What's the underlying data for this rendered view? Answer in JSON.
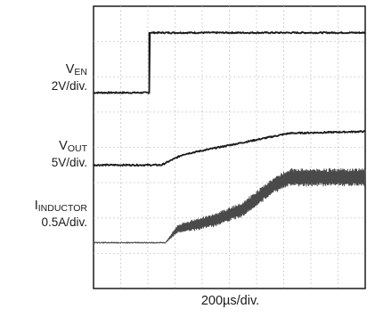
{
  "labels": {
    "ven_main": "V",
    "ven_sub": "EN",
    "ven_scale": "2V/div.",
    "vout_main": "V",
    "vout_sub": "OUT",
    "vout_scale": "5V/div.",
    "iind_main": "I",
    "iind_sub": "INDUCTOR",
    "iind_scale": "0.5A/div."
  },
  "timebase": "200µs/div.",
  "chart_data": {
    "type": "line",
    "title": "",
    "xlabel": "200µs/div.",
    "ylabel": "",
    "grid": true,
    "x_divisions": 10,
    "y_divisions": 8,
    "xlim": [
      0,
      10
    ],
    "ylim": [
      0,
      8
    ],
    "series": [
      {
        "name": "VEN",
        "scale": "2V/div.",
        "x": [
          0,
          2.05,
          2.05,
          10
        ],
        "y": [
          5.55,
          5.55,
          7.25,
          7.25
        ]
      },
      {
        "name": "VOUT",
        "scale": "5V/div.",
        "x": [
          0,
          2.5,
          3.3,
          7.2,
          10
        ],
        "y": [
          3.5,
          3.5,
          3.8,
          4.4,
          4.45
        ]
      },
      {
        "name": "IINDUCTOR",
        "scale": "0.5A/div.",
        "x": [
          0,
          2.65,
          3.1,
          3.7,
          4.5,
          5.5,
          6.6,
          7.2,
          10
        ],
        "y": [
          1.3,
          1.3,
          1.7,
          1.8,
          1.95,
          2.25,
          2.9,
          3.15,
          3.15
        ],
        "ripple": [
          0,
          0,
          0.1,
          0.15,
          0.18,
          0.2,
          0.22,
          0.24,
          0.25
        ]
      }
    ]
  }
}
